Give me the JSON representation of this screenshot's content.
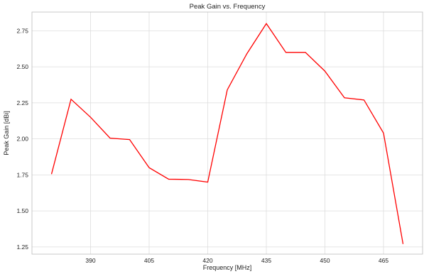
{
  "chart_data": {
    "type": "line",
    "title": "Peak Gain vs. Frequency",
    "xlabel": "Frequency [MHz]",
    "ylabel": "Peak Gain [dBi]",
    "x": [
      380,
      385,
      390,
      395,
      400,
      405,
      410,
      415,
      420,
      425,
      430,
      435,
      440,
      445,
      450,
      455,
      460,
      465,
      470
    ],
    "series": [
      {
        "values": [
          1.755,
          2.275,
          2.15,
          2.005,
          1.995,
          1.8,
          1.72,
          1.718,
          1.7,
          2.34,
          2.59,
          2.8,
          2.6,
          2.6,
          2.47,
          2.285,
          2.27,
          2.04,
          1.27
        ]
      }
    ],
    "xlim": [
      375,
      475
    ],
    "ylim": [
      1.2,
      2.88
    ],
    "xticks": [
      390,
      405,
      420,
      435,
      450,
      465
    ],
    "yticks": [
      1.25,
      1.5,
      1.75,
      2.0,
      2.25,
      2.5,
      2.75
    ],
    "grid": true,
    "line_color": "#ff0000"
  }
}
